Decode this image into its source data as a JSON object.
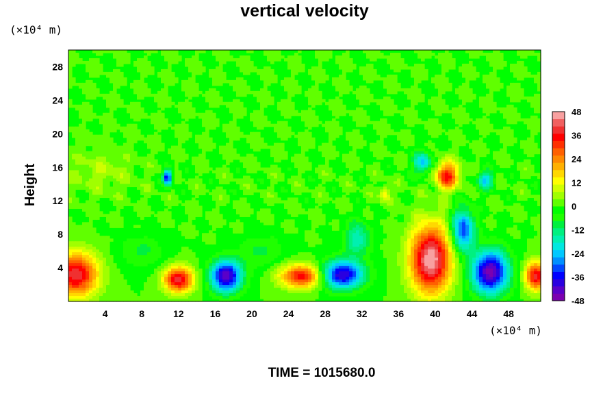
{
  "chart_data": {
    "type": "heatmap",
    "title": "vertical velocity",
    "ylabel": "Height",
    "xlabel": "",
    "x_unit": "(×10⁴ m)",
    "y_unit": "(×10⁴ m)",
    "xlim": [
      0,
      51.5
    ],
    "ylim": [
      0,
      30
    ],
    "x_ticks": [
      "4",
      "8",
      "12",
      "16",
      "20",
      "24",
      "28",
      "32",
      "36",
      "40",
      "44",
      "48"
    ],
    "x_tick_values": [
      4,
      8,
      12,
      16,
      20,
      24,
      28,
      32,
      36,
      40,
      44,
      48
    ],
    "y_ticks": [
      "4",
      "8",
      "12",
      "16",
      "20",
      "24",
      "28"
    ],
    "y_tick_values": [
      4,
      8,
      12,
      16,
      20,
      24,
      28
    ],
    "colorbar": {
      "range": [
        -48,
        48
      ],
      "ticks": [
        "48",
        "36",
        "24",
        "12",
        "0",
        "-12",
        "-24",
        "-36",
        "-48"
      ],
      "tick_values": [
        48,
        36,
        24,
        12,
        0,
        -12,
        -24,
        -36,
        -48
      ],
      "colors": [
        "#7b00b0",
        "#5a00c8",
        "#2a00e0",
        "#0000ff",
        "#0048ff",
        "#0090ff",
        "#00c8ff",
        "#00e8e0",
        "#00f0b0",
        "#00f080",
        "#00f040",
        "#20ff00",
        "#00ff00",
        "#60ff00",
        "#a0ff00",
        "#d0ff00",
        "#ffff00",
        "#ffd800",
        "#ffb000",
        "#ff8800",
        "#ff6000",
        "#ff3000",
        "#ff0000",
        "#f03030",
        "#f06060",
        "#f8a0a0"
      ]
    },
    "features": [
      {
        "x": 0.8,
        "y": 3.2,
        "sx": 2.4,
        "sy": 2.6,
        "value": 40
      },
      {
        "x": 12.0,
        "y": 2.6,
        "sx": 1.6,
        "sy": 1.5,
        "value": 40
      },
      {
        "x": 17.2,
        "y": 3.0,
        "sx": 1.7,
        "sy": 1.9,
        "value": -44
      },
      {
        "x": 25.5,
        "y": 3.0,
        "sx": 2.4,
        "sy": 1.4,
        "value": 36
      },
      {
        "x": 29.8,
        "y": 3.2,
        "sx": 2.4,
        "sy": 1.7,
        "value": -42
      },
      {
        "x": 31.5,
        "y": 7.5,
        "sx": 1.4,
        "sy": 2.0,
        "value": -18
      },
      {
        "x": 39.5,
        "y": 5.0,
        "sx": 2.2,
        "sy": 4.0,
        "value": 48
      },
      {
        "x": 46.0,
        "y": 3.5,
        "sx": 2.0,
        "sy": 2.6,
        "value": -46
      },
      {
        "x": 43.0,
        "y": 8.5,
        "sx": 1.2,
        "sy": 2.5,
        "value": -34
      },
      {
        "x": 51.0,
        "y": 3.0,
        "sx": 1.2,
        "sy": 1.7,
        "value": 38
      },
      {
        "x": 41.3,
        "y": 15.0,
        "sx": 1.3,
        "sy": 1.6,
        "value": 34
      },
      {
        "x": 38.6,
        "y": 16.5,
        "sx": 1.0,
        "sy": 1.3,
        "value": -24
      },
      {
        "x": 10.8,
        "y": 14.8,
        "sx": 0.45,
        "sy": 0.9,
        "value": -40
      },
      {
        "x": 45.5,
        "y": 14.5,
        "sx": 0.9,
        "sy": 1.1,
        "value": -22
      },
      {
        "x": 34.5,
        "y": 12.8,
        "sx": 0.6,
        "sy": 1.0,
        "value": 14
      },
      {
        "x": 8.0,
        "y": 6.0,
        "sx": 2.5,
        "sy": 2.0,
        "value": -8
      },
      {
        "x": 21.0,
        "y": 6.0,
        "sx": 2.5,
        "sy": 2.0,
        "value": -8
      },
      {
        "x": 3.5,
        "y": 15.5,
        "sx": 3.5,
        "sy": 2.5,
        "value": 6
      }
    ]
  },
  "footer": {
    "time_label": "TIME = 1015680.0"
  }
}
